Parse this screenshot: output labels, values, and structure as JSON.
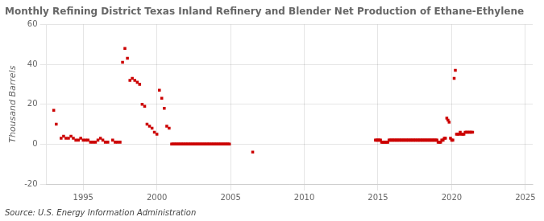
{
  "chart_data": {
    "type": "scatter",
    "title": "Monthly Refining District Texas Inland Refinery and Blender Net Production of Ethane-Ethylene",
    "ylabel": "Thousand Barrels",
    "source": "Source: U.S. Energy Information Administration",
    "color": "#cc0000",
    "marker": "square",
    "grid": true,
    "xlim": [
      1992.5,
      2025.5
    ],
    "ylim": [
      -20,
      60
    ],
    "xticks": [
      1995,
      2000,
      2005,
      2010,
      2015,
      2020,
      2025
    ],
    "yticks": [
      -20,
      0,
      20,
      40,
      60
    ],
    "x": [
      1993.0,
      1993.17,
      1993.5,
      1993.67,
      1993.83,
      1994.0,
      1994.17,
      1994.33,
      1994.5,
      1994.67,
      1994.83,
      1995.0,
      1995.17,
      1995.33,
      1995.5,
      1995.67,
      1995.83,
      1996.0,
      1996.17,
      1996.33,
      1996.5,
      1996.67,
      1997.0,
      1997.17,
      1997.33,
      1997.5,
      1997.67,
      1997.83,
      1998.0,
      1998.17,
      1998.33,
      1998.5,
      1998.67,
      1998.83,
      1999.0,
      1999.17,
      1999.33,
      1999.5,
      1999.67,
      1999.83,
      2000.0,
      2000.17,
      2000.33,
      2000.5,
      2000.67,
      2000.83,
      2001.0,
      2001.08,
      2001.17,
      2001.25,
      2001.33,
      2001.42,
      2001.5,
      2001.58,
      2001.67,
      2001.75,
      2001.83,
      2001.92,
      2002.0,
      2002.08,
      2002.17,
      2002.25,
      2002.33,
      2002.42,
      2002.5,
      2002.58,
      2002.67,
      2002.75,
      2002.83,
      2002.92,
      2003.0,
      2003.08,
      2003.17,
      2003.25,
      2003.33,
      2003.42,
      2003.5,
      2003.58,
      2003.67,
      2003.75,
      2003.83,
      2003.92,
      2004.0,
      2004.08,
      2004.17,
      2004.25,
      2004.33,
      2004.42,
      2004.5,
      2004.58,
      2004.67,
      2004.75,
      2004.83,
      2004.92,
      2006.5,
      2014.83,
      2014.92,
      2015.0,
      2015.08,
      2015.17,
      2015.25,
      2015.33,
      2015.42,
      2015.5,
      2015.58,
      2015.67,
      2015.75,
      2015.83,
      2015.92,
      2016.0,
      2016.08,
      2016.17,
      2016.25,
      2016.33,
      2016.42,
      2016.5,
      2016.58,
      2016.67,
      2016.75,
      2016.83,
      2016.92,
      2017.0,
      2017.08,
      2017.17,
      2017.25,
      2017.33,
      2017.42,
      2017.5,
      2017.58,
      2017.67,
      2017.75,
      2017.83,
      2017.92,
      2018.0,
      2018.08,
      2018.17,
      2018.25,
      2018.33,
      2018.42,
      2018.5,
      2018.58,
      2018.67,
      2018.75,
      2018.83,
      2018.92,
      2019.0,
      2019.08,
      2019.17,
      2019.25,
      2019.33,
      2019.42,
      2019.5,
      2019.58,
      2019.67,
      2019.75,
      2019.83,
      2019.92,
      2020.0,
      2020.08,
      2020.17,
      2020.25,
      2020.33,
      2020.42,
      2020.5,
      2020.58,
      2020.67,
      2020.75,
      2020.83,
      2020.92,
      2021.0,
      2021.08,
      2021.17,
      2021.25,
      2021.33,
      2021.42
    ],
    "values": [
      17,
      10,
      3,
      4,
      3,
      3,
      4,
      3,
      2,
      2,
      3,
      2,
      2,
      2,
      1,
      1,
      1,
      2,
      3,
      2,
      1,
      1,
      2,
      1,
      1,
      1,
      41,
      48,
      43,
      32,
      33,
      32,
      31,
      30,
      20,
      19,
      10,
      9,
      8,
      6,
      5,
      27,
      23,
      18,
      9,
      8,
      0,
      0,
      0,
      0,
      0,
      0,
      0,
      0,
      0,
      0,
      0,
      0,
      0,
      0,
      0,
      0,
      0,
      0,
      0,
      0,
      0,
      0,
      0,
      0,
      0,
      0,
      0,
      0,
      0,
      0,
      0,
      0,
      0,
      0,
      0,
      0,
      0,
      0,
      0,
      0,
      0,
      0,
      0,
      0,
      0,
      0,
      0,
      0,
      -4,
      2,
      2,
      2,
      2,
      2,
      1,
      1,
      1,
      1,
      1,
      1,
      2,
      2,
      2,
      2,
      2,
      2,
      2,
      2,
      2,
      2,
      2,
      2,
      2,
      2,
      2,
      2,
      2,
      2,
      2,
      2,
      2,
      2,
      2,
      2,
      2,
      2,
      2,
      2,
      2,
      2,
      2,
      2,
      2,
      2,
      2,
      2,
      2,
      2,
      2,
      2,
      1,
      1,
      1,
      2,
      2,
      3,
      3,
      13,
      12,
      11,
      3,
      2,
      2,
      33,
      37,
      5,
      5,
      5,
      6,
      5,
      5,
      5,
      6,
      6,
      6,
      6,
      6,
      6,
      6
    ]
  }
}
